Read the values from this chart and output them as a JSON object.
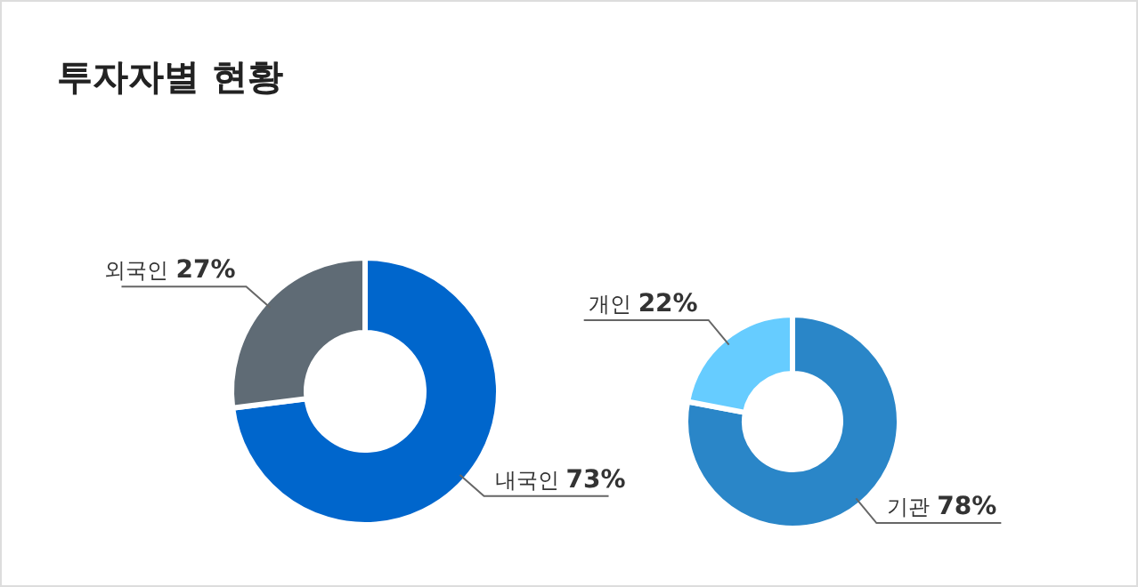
{
  "chart_data": [
    {
      "type": "donut",
      "title": "투자자별 현황",
      "categories": [
        "내국인",
        "외국인"
      ],
      "values": [
        73,
        27
      ],
      "colors": [
        "#0066cc",
        "#5f6b75"
      ],
      "value_labels": [
        "73%",
        "27%"
      ]
    },
    {
      "type": "donut",
      "categories": [
        "기관",
        "개인"
      ],
      "values": [
        78,
        22
      ],
      "colors": [
        "#2a86c8",
        "#66ccff"
      ],
      "value_labels": [
        "78%",
        "22%"
      ]
    }
  ]
}
